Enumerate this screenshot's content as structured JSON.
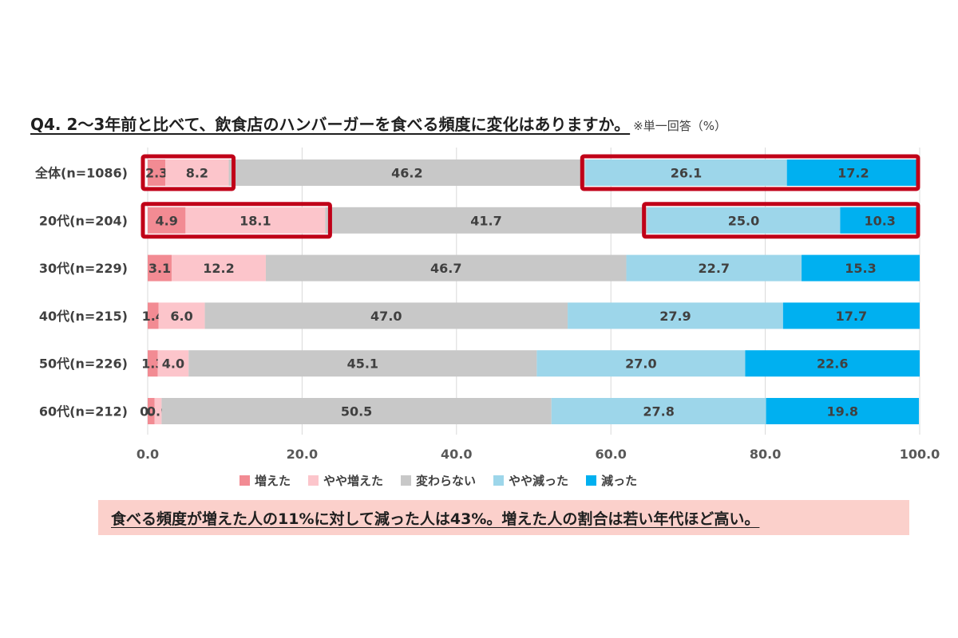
{
  "title": {
    "main": "Q4. 2～3年前と比べて、飲食店のハンバーガーを食べる頻度に変化はありますか。",
    "note": "※単一回答（%）"
  },
  "callout": "食べる頻度が増えた人の11%に対して減った人は43%。増えた人の割合は若い年代ほど高い。",
  "chart_data": {
    "type": "bar",
    "orientation": "horizontal",
    "stacked": true,
    "categories": [
      "全体(n=1086)",
      "20代(n=204)",
      "30代(n=229)",
      "40代(n=215)",
      "50代(n=226)",
      "60代(n=212)"
    ],
    "series": [
      {
        "name": "増えた",
        "color": "#f28b93",
        "values": [
          2.3,
          4.9,
          3.1,
          1.4,
          1.3,
          0.9
        ]
      },
      {
        "name": "やや増えた",
        "color": "#fcc5cb",
        "values": [
          8.2,
          18.1,
          12.2,
          6.0,
          4.0,
          0.9
        ]
      },
      {
        "name": "変わらない",
        "color": "#c8c8c8",
        "values": [
          46.2,
          41.7,
          46.7,
          47.0,
          45.1,
          50.5
        ]
      },
      {
        "name": "やや減った",
        "color": "#9dd6ea",
        "values": [
          26.1,
          25.0,
          22.7,
          27.9,
          27.0,
          27.8
        ]
      },
      {
        "name": "減った",
        "color": "#00b0f0",
        "values": [
          17.2,
          10.3,
          15.3,
          17.7,
          22.6,
          19.8
        ]
      }
    ],
    "xlim": [
      0,
      100
    ],
    "xticks": [
      "0.0",
      "20.0",
      "40.0",
      "60.0",
      "80.0",
      "100.0"
    ],
    "grid": true,
    "legend_position": "bottom",
    "highlight_color": "#c00018",
    "highlighted_rows": [
      "全体(n=1086)",
      "20代(n=204)"
    ]
  }
}
